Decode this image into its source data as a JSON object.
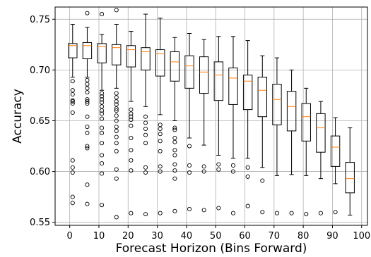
{
  "chart_data": {
    "type": "box",
    "xlabel": "Forecast Horizon (Bins Forward)",
    "ylabel": "Accuracy",
    "xlim": [
      -5,
      102
    ],
    "ylim": [
      0.547,
      0.762
    ],
    "xticks": [
      0,
      10,
      20,
      30,
      40,
      50,
      60,
      70,
      80,
      90,
      100
    ],
    "yticks": [
      0.55,
      0.6,
      0.65,
      0.7,
      0.75
    ],
    "ytick_labels": [
      "0.55",
      "0.60",
      "0.65",
      "0.70",
      "0.75"
    ],
    "grid": true,
    "colors": {
      "box": "#000000",
      "median": "#ff7f0e",
      "grid": "#b0b0b0"
    },
    "boxes": [
      {
        "x": 1,
        "q1": 0.712,
        "median": 0.724,
        "q3": 0.726,
        "wlo": 0.693,
        "whi": 0.745,
        "fliers": [
          0.689,
          0.68,
          0.676,
          0.67,
          0.669,
          0.667,
          0.658,
          0.611,
          0.604,
          0.599,
          0.575,
          0.569
        ]
      },
      {
        "x": 6,
        "q1": 0.711,
        "median": 0.724,
        "q3": 0.727,
        "wlo": 0.693,
        "whi": 0.742,
        "fliers": [
          0.756,
          0.69,
          0.686,
          0.682,
          0.678,
          0.671,
          0.669,
          0.667,
          0.654,
          0.644,
          0.638,
          0.625,
          0.623,
          0.587,
          0.568
        ]
      },
      {
        "x": 11,
        "q1": 0.707,
        "median": 0.723,
        "q3": 0.726,
        "wlo": 0.68,
        "whi": 0.735,
        "fliers": [
          0.755,
          0.677,
          0.674,
          0.671,
          0.668,
          0.664,
          0.66,
          0.657,
          0.652,
          0.643,
          0.638,
          0.628,
          0.616,
          0.608,
          0.598,
          0.567
        ]
      },
      {
        "x": 16,
        "q1": 0.705,
        "median": 0.722,
        "q3": 0.725,
        "wlo": 0.682,
        "whi": 0.745,
        "fliers": [
          0.759,
          0.677,
          0.673,
          0.669,
          0.666,
          0.662,
          0.66,
          0.655,
          0.65,
          0.644,
          0.64,
          0.634,
          0.628,
          0.62,
          0.602,
          0.593,
          0.555
        ]
      },
      {
        "x": 21,
        "q1": 0.703,
        "median": 0.72,
        "q3": 0.724,
        "wlo": 0.669,
        "whi": 0.738,
        "fliers": [
          0.661,
          0.657,
          0.654,
          0.651,
          0.645,
          0.633,
          0.621,
          0.611,
          0.601,
          0.559
        ]
      },
      {
        "x": 26,
        "q1": 0.7,
        "median": 0.718,
        "q3": 0.722,
        "wlo": 0.664,
        "whi": 0.755,
        "fliers": [
          0.654,
          0.648,
          0.642,
          0.636,
          0.628,
          0.604,
          0.599,
          0.558
        ]
      },
      {
        "x": 31,
        "q1": 0.694,
        "median": 0.716,
        "q3": 0.72,
        "wlo": 0.656,
        "whi": 0.751,
        "fliers": [
          0.646,
          0.642,
          0.637,
          0.63,
          0.62,
          0.605,
          0.6,
          0.559
        ]
      },
      {
        "x": 36,
        "q1": 0.689,
        "median": 0.708,
        "q3": 0.718,
        "wlo": 0.65,
        "whi": 0.732,
        "fliers": [
          0.643,
          0.641,
          0.633,
          0.629,
          0.621,
          0.616,
          0.607,
          0.601,
          0.593,
          0.561
        ]
      },
      {
        "x": 41,
        "q1": 0.682,
        "median": 0.704,
        "q3": 0.714,
        "wlo": 0.633,
        "whi": 0.736,
        "fliers": [
          0.625,
          0.606,
          0.599,
          0.563
        ]
      },
      {
        "x": 46,
        "q1": 0.677,
        "median": 0.698,
        "q3": 0.713,
        "wlo": 0.626,
        "whi": 0.73,
        "fliers": [
          0.605,
          0.6,
          0.562
        ]
      },
      {
        "x": 51,
        "q1": 0.67,
        "median": 0.695,
        "q3": 0.708,
        "wlo": 0.616,
        "whi": 0.733,
        "fliers": [
          0.607,
          0.602,
          0.564
        ]
      },
      {
        "x": 56,
        "q1": 0.666,
        "median": 0.692,
        "q3": 0.702,
        "wlo": 0.613,
        "whi": 0.733,
        "fliers": [
          0.606,
          0.6,
          0.559
        ]
      },
      {
        "x": 61,
        "q1": 0.661,
        "median": 0.689,
        "q3": 0.695,
        "wlo": 0.613,
        "whi": 0.729,
        "fliers": [
          0.604,
          0.595,
          0.566
        ]
      },
      {
        "x": 66,
        "q1": 0.654,
        "median": 0.68,
        "q3": 0.693,
        "wlo": 0.604,
        "whi": 0.714,
        "fliers": [
          0.591,
          0.56
        ]
      },
      {
        "x": 71,
        "q1": 0.646,
        "median": 0.671,
        "q3": 0.686,
        "wlo": 0.596,
        "whi": 0.712,
        "fliers": [
          0.559
        ]
      },
      {
        "x": 76,
        "q1": 0.64,
        "median": 0.664,
        "q3": 0.679,
        "wlo": 0.597,
        "whi": 0.7,
        "fliers": [
          0.559
        ]
      },
      {
        "x": 81,
        "q1": 0.63,
        "median": 0.654,
        "q3": 0.667,
        "wlo": 0.596,
        "whi": 0.682,
        "fliers": [
          0.558
        ]
      },
      {
        "x": 86,
        "q1": 0.619,
        "median": 0.643,
        "q3": 0.657,
        "wlo": 0.593,
        "whi": 0.669,
        "fliers": [
          0.559
        ]
      },
      {
        "x": 91,
        "q1": 0.605,
        "median": 0.624,
        "q3": 0.635,
        "wlo": 0.588,
        "whi": 0.653,
        "fliers": [
          0.56
        ]
      },
      {
        "x": 96,
        "q1": 0.579,
        "median": 0.593,
        "q3": 0.609,
        "wlo": 0.557,
        "whi": 0.643,
        "fliers": []
      }
    ]
  }
}
